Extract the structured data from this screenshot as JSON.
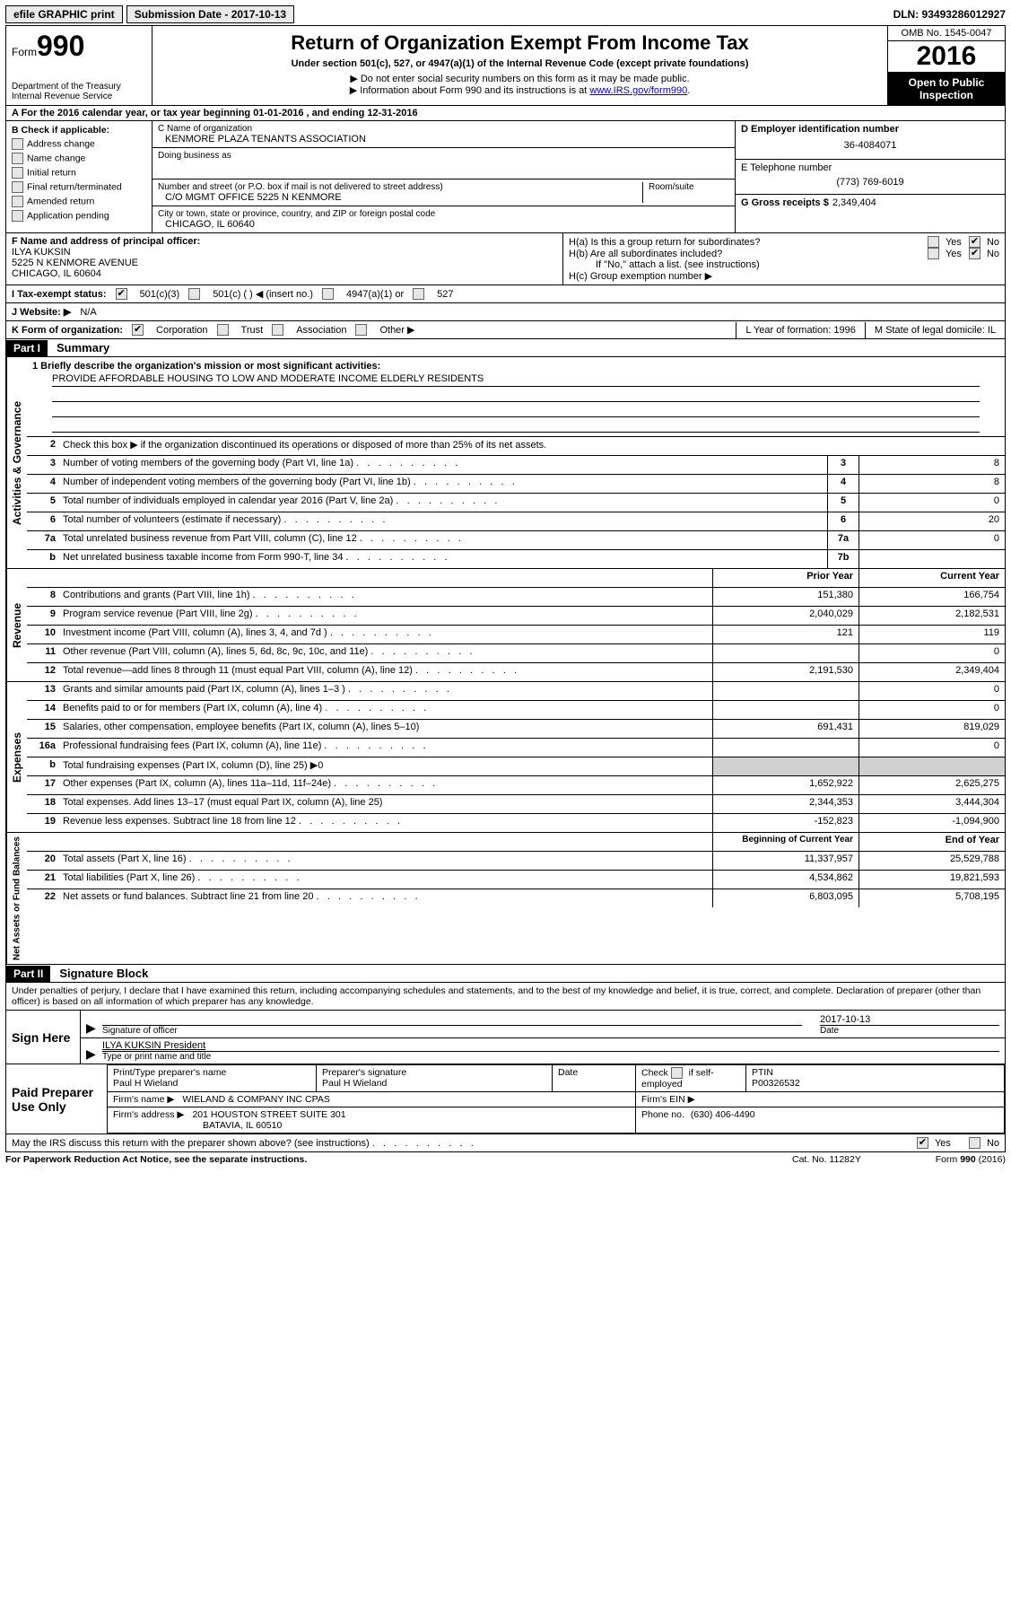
{
  "meta": {
    "dln": "DLN: 93493286012927",
    "submission_date": "Submission Date - 2017-10-13",
    "efile_label": "efile GRAPHIC print"
  },
  "header": {
    "form_label": "Form",
    "form_number": "990",
    "dept1": "Department of the Treasury",
    "dept2": "Internal Revenue Service",
    "title": "Return of Organization Exempt From Income Tax",
    "subtitle": "Under section 501(c), 527, or 4947(a)(1) of the Internal Revenue Code (except private foundations)",
    "note1": "▶ Do not enter social security numbers on this form as it may be made public.",
    "note2a": "▶ Information about Form 990 and its instructions is at ",
    "note2link": "www.IRS.gov/form990",
    "note2b": ".",
    "omb": "OMB No. 1545-0047",
    "year": "2016",
    "inspection1": "Open to Public",
    "inspection2": "Inspection"
  },
  "row_a": "A  For the 2016 calendar year, or tax year beginning 01-01-2016   , and ending 12-31-2016",
  "section_b": {
    "header": "B Check if applicable:",
    "items": [
      "Address change",
      "Name change",
      "Initial return",
      "Final return/terminated",
      "Amended return",
      "Application pending"
    ]
  },
  "section_c": {
    "name_label": "C Name of organization",
    "name": "KENMORE PLAZA TENANTS ASSOCIATION",
    "dba_label": "Doing business as",
    "dba": "",
    "street_label": "Number and street (or P.O. box if mail is not delivered to street address)",
    "room_label": "Room/suite",
    "street": "C/O MGMT OFFICE 5225 N KENMORE",
    "city_label": "City or town, state or province, country, and ZIP or foreign postal code",
    "city": "CHICAGO, IL  60640"
  },
  "section_d": {
    "ein_label": "D Employer identification number",
    "ein": "36-4084071",
    "phone_label": "E Telephone number",
    "phone": "(773) 769-6019",
    "gross_label": "G Gross receipts $",
    "gross": "2,349,404"
  },
  "section_f": {
    "label": "F Name and address of principal officer:",
    "name": "ILYA KUKSIN",
    "addr1": "5225 N KENMORE AVENUE",
    "addr2": "CHICAGO, IL  60604"
  },
  "section_h": {
    "ha": "H(a)  Is this a group return for subordinates?",
    "hb": "H(b)  Are all subordinates included?",
    "hb_note": "If \"No,\" attach a list. (see instructions)",
    "hc": "H(c)  Group exemption number ▶",
    "yes": "Yes",
    "no": "No"
  },
  "row_i": {
    "label": "I  Tax-exempt status:",
    "opts": [
      "501(c)(3)",
      "501(c) (  ) ◀ (insert no.)",
      "4947(a)(1) or",
      "527"
    ]
  },
  "row_j": {
    "label": "J  Website: ▶",
    "value": "N/A"
  },
  "row_k": {
    "label": "K Form of organization:",
    "opts": [
      "Corporation",
      "Trust",
      "Association",
      "Other ▶"
    ],
    "l": "L Year of formation: 1996",
    "m": "M State of legal domicile: IL"
  },
  "part1": {
    "header": "Part I",
    "title": "Summary",
    "l1_label": "1 Briefly describe the organization's mission or most significant activities:",
    "l1_value": "PROVIDE AFFORDABLE HOUSING TO LOW AND MODERATE INCOME ELDERLY RESIDENTS",
    "l2": "Check this box ▶      if the organization discontinued its operations or disposed of more than 25% of its net assets.",
    "lines_ag": [
      {
        "n": "3",
        "d": "Number of voting members of the governing body (Part VI, line 1a)",
        "box": "3",
        "v": "8"
      },
      {
        "n": "4",
        "d": "Number of independent voting members of the governing body (Part VI, line 1b)",
        "box": "4",
        "v": "8"
      },
      {
        "n": "5",
        "d": "Total number of individuals employed in calendar year 2016 (Part V, line 2a)",
        "box": "5",
        "v": "0"
      },
      {
        "n": "6",
        "d": "Total number of volunteers (estimate if necessary)",
        "box": "6",
        "v": "20"
      },
      {
        "n": "7a",
        "d": "Total unrelated business revenue from Part VIII, column (C), line 12",
        "box": "7a",
        "v": "0"
      },
      {
        "n": "b",
        "d": "Net unrelated business taxable income from Form 990-T, line 34",
        "box": "7b",
        "v": ""
      }
    ],
    "col_prior": "Prior Year",
    "col_current": "Current Year",
    "revenue_label": "Revenue",
    "revenue": [
      {
        "n": "8",
        "d": "Contributions and grants (Part VIII, line 1h)",
        "p": "151,380",
        "c": "166,754"
      },
      {
        "n": "9",
        "d": "Program service revenue (Part VIII, line 2g)",
        "p": "2,040,029",
        "c": "2,182,531"
      },
      {
        "n": "10",
        "d": "Investment income (Part VIII, column (A), lines 3, 4, and 7d )",
        "p": "121",
        "c": "119"
      },
      {
        "n": "11",
        "d": "Other revenue (Part VIII, column (A), lines 5, 6d, 8c, 9c, 10c, and 11e)",
        "p": "",
        "c": "0"
      },
      {
        "n": "12",
        "d": "Total revenue—add lines 8 through 11 (must equal Part VIII, column (A), line 12)",
        "p": "2,191,530",
        "c": "2,349,404"
      }
    ],
    "expenses_label": "Expenses",
    "expenses": [
      {
        "n": "13",
        "d": "Grants and similar amounts paid (Part IX, column (A), lines 1–3 )",
        "p": "",
        "c": "0",
        "dots": true
      },
      {
        "n": "14",
        "d": "Benefits paid to or for members (Part IX, column (A), line 4)",
        "p": "",
        "c": "0",
        "dots": true
      },
      {
        "n": "15",
        "d": "Salaries, other compensation, employee benefits (Part IX, column (A), lines 5–10)",
        "p": "691,431",
        "c": "819,029"
      },
      {
        "n": "16a",
        "d": "Professional fundraising fees (Part IX, column (A), line 11e)",
        "p": "",
        "c": "0",
        "dots": true
      },
      {
        "n": "b",
        "d": "Total fundraising expenses (Part IX, column (D), line 25) ▶0",
        "p": "shade",
        "c": "shade"
      },
      {
        "n": "17",
        "d": "Other expenses (Part IX, column (A), lines 11a–11d, 11f–24e)",
        "p": "1,652,922",
        "c": "2,625,275",
        "dots": true
      },
      {
        "n": "18",
        "d": "Total expenses. Add lines 13–17 (must equal Part IX, column (A), line 25)",
        "p": "2,344,353",
        "c": "3,444,304"
      },
      {
        "n": "19",
        "d": "Revenue less expenses. Subtract line 18 from line 12",
        "p": "-152,823",
        "c": "-1,094,900",
        "dots": true
      }
    ],
    "col_begin": "Beginning of Current Year",
    "col_end": "End of Year",
    "netassets_label": "Net Assets or Fund Balances",
    "netassets": [
      {
        "n": "20",
        "d": "Total assets (Part X, line 16)",
        "p": "11,337,957",
        "c": "25,529,788",
        "dots": true
      },
      {
        "n": "21",
        "d": "Total liabilities (Part X, line 26)",
        "p": "4,534,862",
        "c": "19,821,593",
        "dots": true
      },
      {
        "n": "22",
        "d": "Net assets or fund balances. Subtract line 21 from line 20",
        "p": "6,803,095",
        "c": "5,708,195",
        "dots": true
      }
    ]
  },
  "part2": {
    "header": "Part II",
    "title": "Signature Block",
    "declaration": "Under penalties of perjury, I declare that I have examined this return, including accompanying schedules and statements, and to the best of my knowledge and belief, it is true, correct, and complete. Declaration of preparer (other than officer) is based on all information of which preparer has any knowledge.",
    "sign_here": "Sign Here",
    "sig_officer_label": "Signature of officer",
    "date_label": "Date",
    "sig_date": "2017-10-13",
    "officer_name": "ILYA KUKSIN President",
    "name_title_label": "Type or print name and title",
    "paid_prep": "Paid Preparer Use Only",
    "prep_name_label": "Print/Type preparer's name",
    "prep_name": "Paul H Wieland",
    "prep_sig_label": "Preparer's signature",
    "prep_sig": "Paul H Wieland",
    "prep_date_label": "Date",
    "self_emp": "Check       if self-employed",
    "ptin_label": "PTIN",
    "ptin": "P00326532",
    "firm_name_label": "Firm's name    ▶",
    "firm_name": "WIELAND & COMPANY INC CPAS",
    "firm_ein_label": "Firm's EIN ▶",
    "firm_addr_label": "Firm's address ▶",
    "firm_addr": "201 HOUSTON STREET SUITE 301",
    "firm_city": "BATAVIA, IL  60510",
    "firm_phone_label": "Phone no.",
    "firm_phone": "(630) 406-4490",
    "discuss": "May the IRS discuss this return with the preparer shown above? (see instructions)",
    "yes": "Yes",
    "no": "No"
  },
  "footer": {
    "paperwork": "For Paperwork Reduction Act Notice, see the separate instructions.",
    "cat": "Cat. No. 11282Y",
    "form": "Form 990 (2016)"
  }
}
